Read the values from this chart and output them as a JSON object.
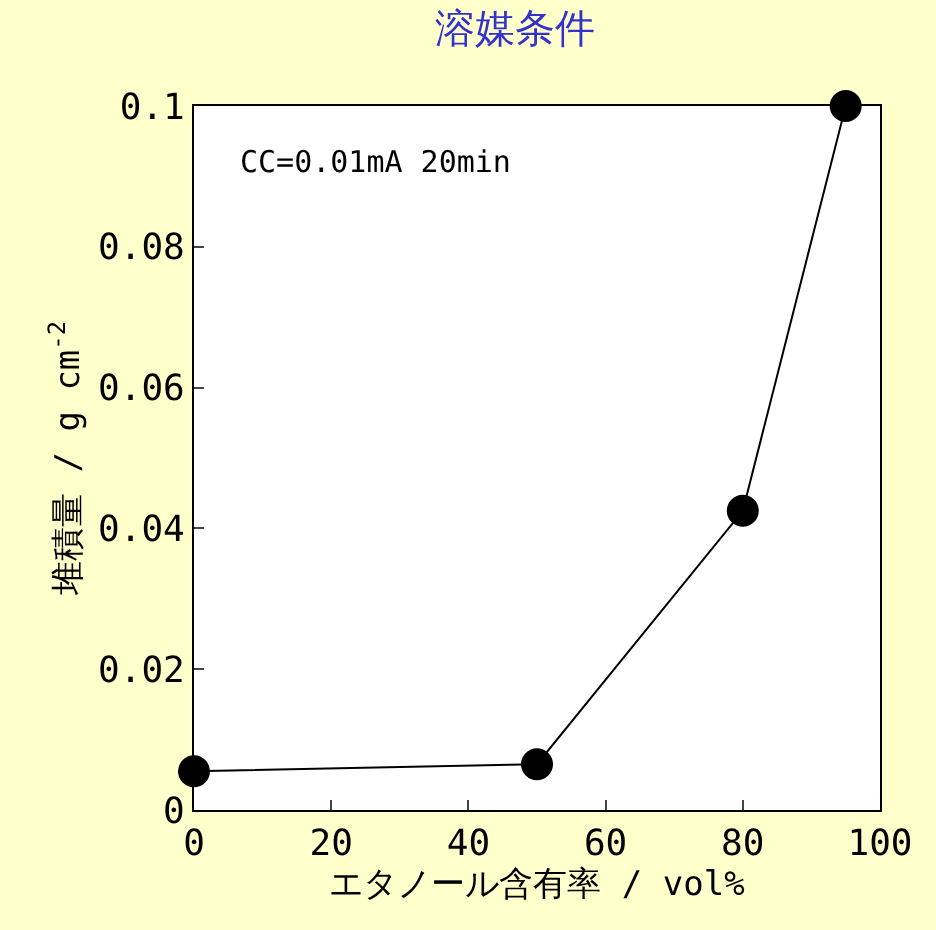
{
  "chart_data": {
    "type": "line",
    "title": "溶媒条件",
    "xlabel": "エタノール含有率 / vol%",
    "ylabel": "堆積量 / g cm$^{-2}$",
    "annotations": [
      "CC=0.01mA 20min"
    ],
    "x": [
      0,
      50,
      80,
      95
    ],
    "series": [
      {
        "color": "#000000",
        "values": [
          0.0055,
          0.0065,
          0.0425,
          0.1
        ]
      }
    ],
    "xlim": [
      0,
      100
    ],
    "xticks": [
      0,
      20,
      40,
      60,
      80,
      100
    ],
    "ylim": [
      0,
      0.1
    ],
    "yticks": [
      0,
      0.02,
      0.04,
      0.06,
      0.08,
      0.1
    ],
    "marker": "circle",
    "line_style": "solid"
  }
}
